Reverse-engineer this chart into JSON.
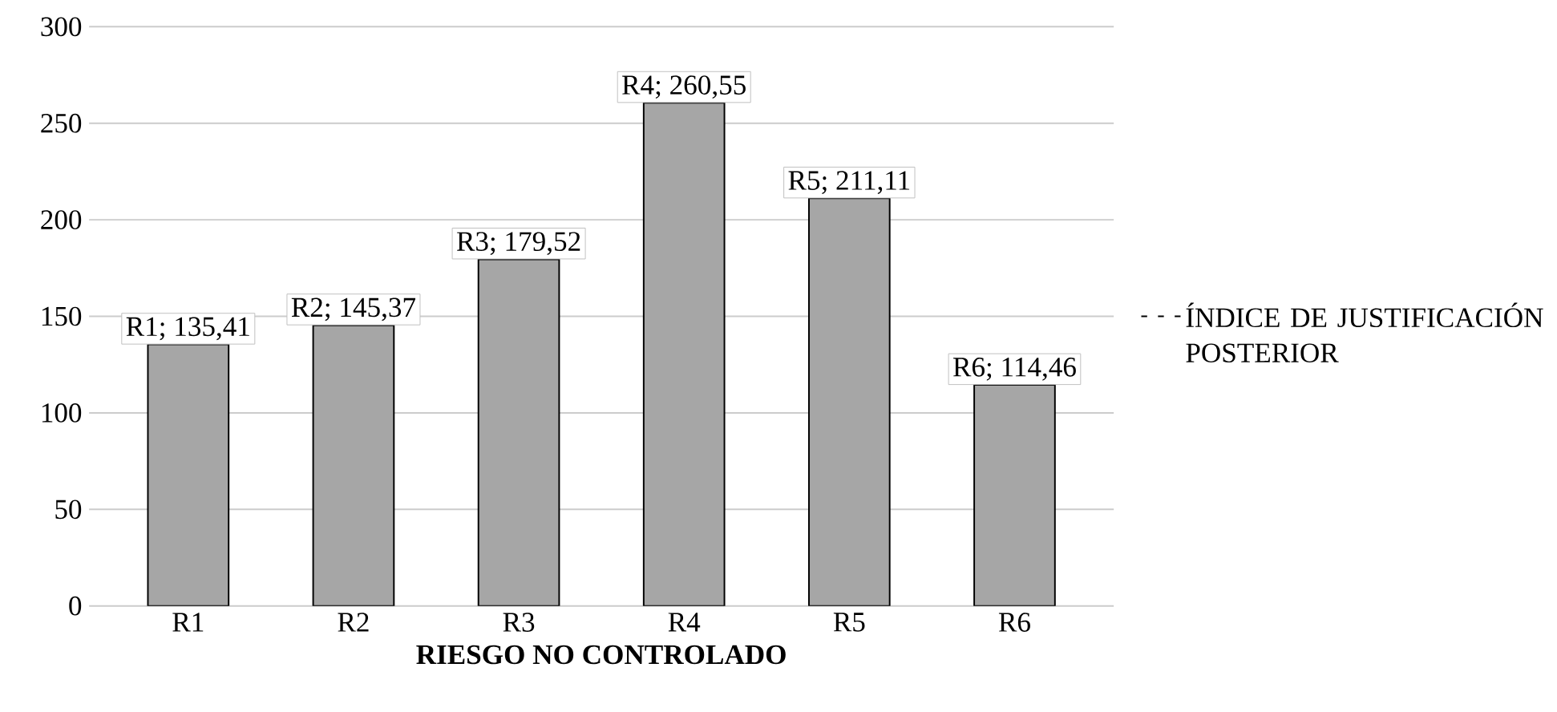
{
  "chart_data": {
    "type": "bar",
    "xlabel": "RIESGO NO CONTROLADO",
    "categories": [
      "R1",
      "R2",
      "R3",
      "R4",
      "R5",
      "R6"
    ],
    "series": [
      {
        "name": "ÍNDICE DE JUSTIFICACIÓN POSTERIOR",
        "color": "#a6a6a6",
        "values": [
          135.41,
          145.37,
          179.52,
          260.55,
          211.11,
          114.46
        ],
        "value_labels": [
          "R1; 135,41",
          "R2; 145,37",
          "R3; 179,52",
          "R4; 260,55",
          "R5; 211,11",
          "R6; 114,46"
        ]
      }
    ],
    "ylim": [
      0,
      300
    ],
    "yticks": [
      0,
      50,
      100,
      150,
      200,
      250,
      300
    ],
    "grid": "y",
    "legend": "right"
  }
}
